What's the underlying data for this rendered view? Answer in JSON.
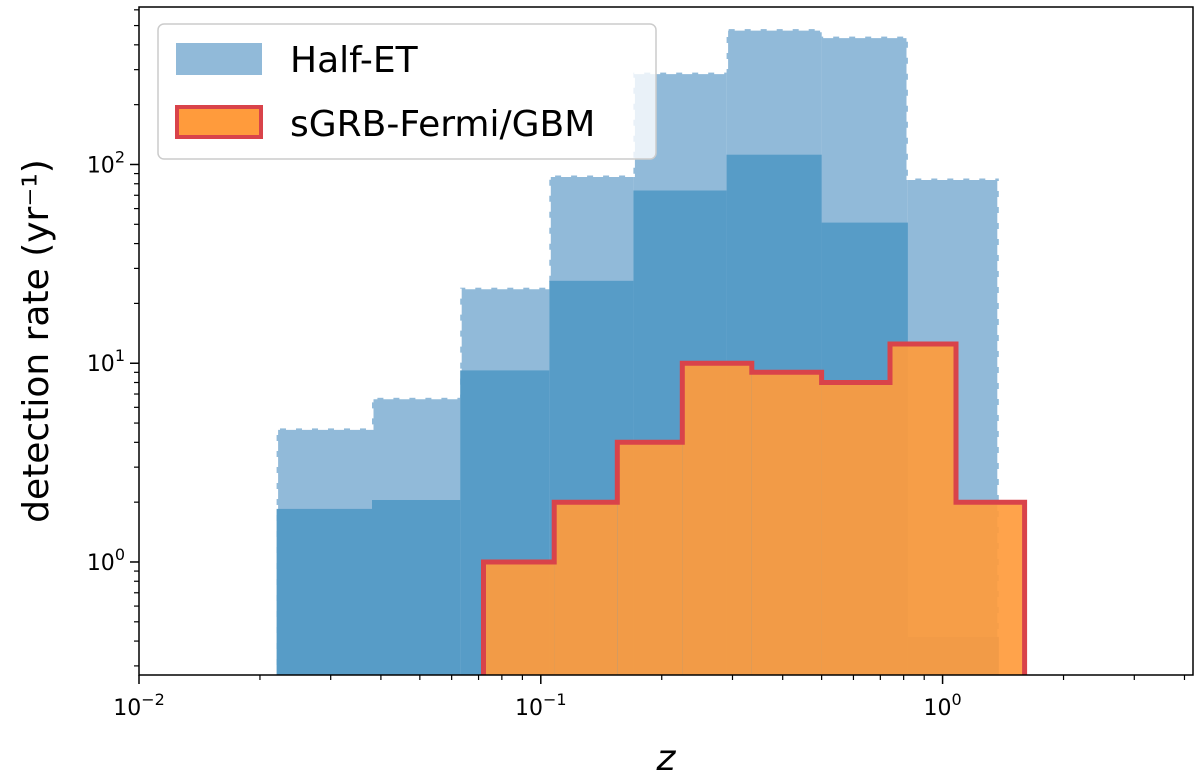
{
  "chart_data": {
    "type": "histogram",
    "x_scale": "log",
    "y_scale": "log",
    "xlim": [
      0.01,
      4.2
    ],
    "ylim": [
      0.27,
      620
    ],
    "xlabel": "z",
    "ylabel": "detection rate (yr⁻¹)",
    "x_ticks": [
      {
        "value": 0.01,
        "base": "10",
        "exp": "−2"
      },
      {
        "value": 0.1,
        "base": "10",
        "exp": "−1"
      },
      {
        "value": 1,
        "base": "10",
        "exp": "0"
      }
    ],
    "y_ticks": [
      {
        "value": 1,
        "base": "10",
        "exp": "0"
      },
      {
        "value": 10,
        "base": "10",
        "exp": "1"
      },
      {
        "value": 100,
        "base": "10",
        "exp": "2"
      }
    ],
    "legend": {
      "placement": "upper-left",
      "entries": [
        {
          "label": "Half-ET",
          "color": "#91bad9"
        },
        {
          "label": "sGRB-Fermi/GBM",
          "color": "#ff9b3c"
        }
      ]
    },
    "series": [
      {
        "name": "Half-ET",
        "style": "upper-envelope",
        "color": "#91bad9",
        "bins": [
          {
            "x0": 0.022,
            "x1": 0.038,
            "value": 4.7
          },
          {
            "x0": 0.038,
            "x1": 0.063,
            "value": 6.7
          },
          {
            "x0": 0.063,
            "x1": 0.105,
            "value": 24
          },
          {
            "x0": 0.105,
            "x1": 0.17,
            "value": 88
          },
          {
            "x0": 0.17,
            "x1": 0.29,
            "value": 290
          },
          {
            "x0": 0.29,
            "x1": 0.5,
            "value": 480
          },
          {
            "x0": 0.5,
            "x1": 0.82,
            "value": 440
          },
          {
            "x0": 0.82,
            "x1": 1.38,
            "value": 85
          }
        ]
      },
      {
        "name": "Half-ET",
        "style": "median",
        "color": "#579cc7",
        "bins": [
          {
            "x0": 0.022,
            "x1": 0.038,
            "value": 1.85
          },
          {
            "x0": 0.038,
            "x1": 0.063,
            "value": 2.05
          },
          {
            "x0": 0.063,
            "x1": 0.105,
            "value": 9.2
          },
          {
            "x0": 0.105,
            "x1": 0.17,
            "value": 26
          },
          {
            "x0": 0.17,
            "x1": 0.29,
            "value": 74
          },
          {
            "x0": 0.29,
            "x1": 0.5,
            "value": 112
          },
          {
            "x0": 0.5,
            "x1": 0.82,
            "value": 51
          },
          {
            "x0": 0.82,
            "x1": 1.38,
            "value": 0.42
          }
        ]
      },
      {
        "name": "sGRB-Fermi/GBM",
        "style": "step",
        "color": "#ff9b3c",
        "edge_color": "#d9434a",
        "bins": [
          {
            "x0": 0.072,
            "x1": 0.108,
            "value": 1
          },
          {
            "x0": 0.108,
            "x1": 0.155,
            "value": 2
          },
          {
            "x0": 0.155,
            "x1": 0.225,
            "value": 4
          },
          {
            "x0": 0.225,
            "x1": 0.335,
            "value": 10
          },
          {
            "x0": 0.335,
            "x1": 0.5,
            "value": 9
          },
          {
            "x0": 0.5,
            "x1": 0.74,
            "value": 8
          },
          {
            "x0": 0.74,
            "x1": 1.08,
            "value": 12.5
          },
          {
            "x0": 1.08,
            "x1": 1.6,
            "value": 2
          }
        ]
      }
    ]
  }
}
